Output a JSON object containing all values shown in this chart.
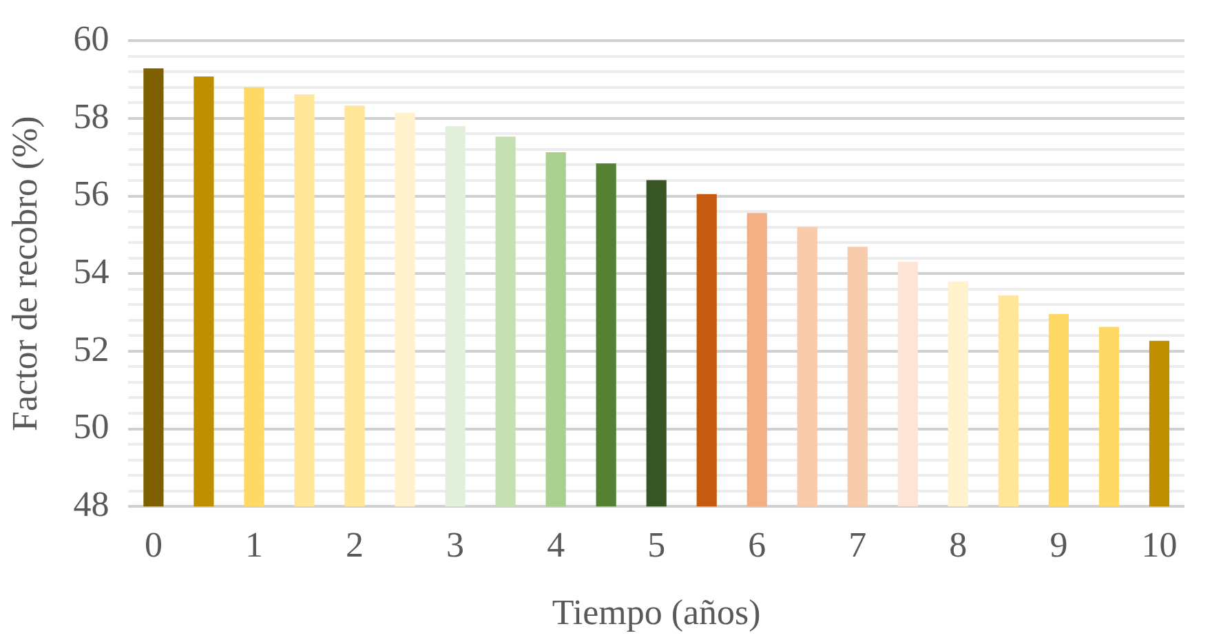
{
  "chart_data": {
    "type": "bar",
    "xlabel": "Tiempo (años)",
    "ylabel": "Factor de recobro (%)",
    "categories": [
      "0",
      null,
      "1",
      null,
      "2",
      null,
      "3",
      null,
      "4",
      null,
      "5",
      null,
      "6",
      null,
      "7",
      null,
      "8",
      null,
      "9",
      null,
      "10"
    ],
    "values": [
      59.29,
      59.08,
      58.8,
      58.62,
      58.33,
      58.15,
      57.8,
      57.53,
      57.13,
      56.84,
      56.41,
      56.05,
      55.56,
      55.2,
      54.69,
      54.3,
      53.8,
      53.44,
      52.96,
      52.63,
      52.27
    ],
    "colors": [
      "#7f6000",
      "#bf8f00",
      "#ffd966",
      "#ffe699",
      "#ffe699",
      "#fff2cc",
      "#e2efda",
      "#c6e0b4",
      "#a9d08e",
      "#548235",
      "#375623",
      "#c55a11",
      "#f4b084",
      "#f8cbad",
      "#f8cbad",
      "#fce4d6",
      "#fff2cc",
      "#ffe699",
      "#ffd966",
      "#ffd966",
      "#bf8f00"
    ],
    "ylim": [
      48,
      60
    ],
    "yticks": [
      48,
      {
        "value": 48.4,
        "label": null
      },
      {
        "value": 48.8,
        "label": null
      },
      {
        "value": 49.2,
        "label": null
      },
      {
        "value": 49.6,
        "label": null
      },
      50,
      {
        "value": 50.4,
        "label": null
      },
      {
        "value": 50.8,
        "label": null
      },
      {
        "value": 51.2,
        "label": null
      },
      {
        "value": 51.6,
        "label": null
      },
      52,
      {
        "value": 52.4,
        "label": null
      },
      {
        "value": 52.8,
        "label": null
      },
      {
        "value": 53.2,
        "label": null
      },
      {
        "value": 53.6,
        "label": null
      },
      54,
      {
        "value": 54.4,
        "label": null
      },
      {
        "value": 54.8,
        "label": null
      },
      {
        "value": 55.2,
        "label": null
      },
      {
        "value": 55.6,
        "label": null
      },
      56,
      {
        "value": 56.4,
        "label": null
      },
      {
        "value": 56.8,
        "label": null
      },
      {
        "value": 57.2,
        "label": null
      },
      {
        "value": 57.6,
        "label": null
      },
      58,
      {
        "value": 58.4,
        "label": null
      },
      {
        "value": 58.8,
        "label": null
      },
      {
        "value": 59.2,
        "label": null
      },
      {
        "value": 59.6,
        "label": null
      },
      60
    ],
    "grid": "y",
    "legend": false
  }
}
